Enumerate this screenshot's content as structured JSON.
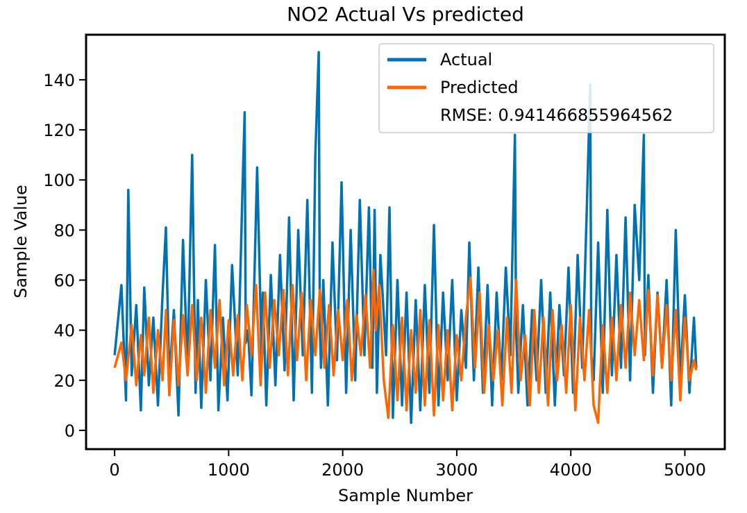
{
  "chart_data": {
    "type": "line",
    "title": "NO2 Actual Vs predicted",
    "xlabel": "Sample Number",
    "ylabel": "Sample Value",
    "xlim": [
      -250,
      5350
    ],
    "ylim": [
      -7.5,
      158
    ],
    "xticks": [
      0,
      1000,
      2000,
      3000,
      4000,
      5000
    ],
    "yticks": [
      0,
      20,
      40,
      60,
      80,
      100,
      120,
      140
    ],
    "xtick_labels": [
      "0",
      "1000",
      "2000",
      "3000",
      "4000",
      "5000"
    ],
    "ytick_labels": [
      "0",
      "20",
      "40",
      "60",
      "80",
      "100",
      "120",
      "140"
    ],
    "legend_position": "top-right",
    "annotation": "RMSE: 0.941466855964562",
    "grid": false,
    "series": [
      {
        "name": "Actual",
        "color": "#0072B2",
        "x": [
          0,
          60,
          100,
          120,
          150,
          190,
          230,
          260,
          300,
          340,
          380,
          420,
          450,
          480,
          520,
          560,
          600,
          640,
          680,
          710,
          730,
          760,
          800,
          840,
          880,
          910,
          950,
          990,
          1030,
          1080,
          1120,
          1140,
          1150,
          1170,
          1200,
          1250,
          1290,
          1300,
          1330,
          1370,
          1410,
          1450,
          1490,
          1530,
          1570,
          1610,
          1650,
          1690,
          1730,
          1760,
          1790,
          1800,
          1810,
          1830,
          1870,
          1910,
          1950,
          1990,
          2030,
          2070,
          2110,
          2150,
          2190,
          2230,
          2260,
          2280,
          2300,
          2330,
          2380,
          2410,
          2440,
          2480,
          2520,
          2560,
          2600,
          2640,
          2680,
          2720,
          2760,
          2800,
          2840,
          2880,
          2920,
          2960,
          3000,
          3040,
          3080,
          3110,
          3150,
          3190,
          3230,
          3270,
          3310,
          3350,
          3390,
          3430,
          3470,
          3510,
          3520,
          3540,
          3580,
          3620,
          3660,
          3700,
          3740,
          3780,
          3820,
          3860,
          3900,
          3940,
          3980,
          4020,
          4060,
          4100,
          4140,
          4170,
          4180,
          4200,
          4240,
          4280,
          4320,
          4360,
          4400,
          4440,
          4480,
          4520,
          4560,
          4600,
          4640,
          4650,
          4680,
          4720,
          4760,
          4800,
          4840,
          4880,
          4920,
          4960,
          5000,
          5040,
          5080,
          5100
        ],
        "y": [
          30,
          58,
          12,
          96,
          22,
          50,
          8,
          57,
          18,
          45,
          10,
          54,
          81,
          20,
          48,
          6,
          76,
          25,
          110,
          15,
          52,
          9,
          60,
          20,
          74,
          8,
          45,
          12,
          66,
          22,
          94,
          127,
          35,
          40,
          14,
          105,
          28,
          55,
          10,
          62,
          18,
          70,
          24,
          85,
          12,
          80,
          30,
          92,
          15,
          110,
          151,
          40,
          25,
          60,
          10,
          75,
          28,
          99,
          15,
          80,
          20,
          92,
          30,
          89,
          25,
          88,
          15,
          70,
          30,
          89,
          5,
          60,
          10,
          55,
          3,
          52,
          8,
          58,
          15,
          82,
          10,
          55,
          20,
          60,
          12,
          48,
          25,
          75,
          20,
          65,
          15,
          58,
          10,
          55,
          20,
          65,
          30,
          118,
          40,
          15,
          50,
          10,
          48,
          20,
          60,
          15,
          55,
          10,
          50,
          22,
          65,
          15,
          70,
          25,
          88,
          138,
          30,
          20,
          75,
          15,
          88,
          22,
          70,
          25,
          85,
          20,
          90,
          60,
          118,
          30,
          62,
          15,
          55,
          25,
          60,
          10,
          80,
          20,
          54,
          15,
          45,
          25
        ]
      },
      {
        "name": "Predicted",
        "color": "#FF6600",
        "x": [
          0,
          60,
          100,
          150,
          190,
          230,
          260,
          300,
          340,
          380,
          420,
          450,
          480,
          520,
          560,
          600,
          640,
          680,
          720,
          760,
          800,
          840,
          880,
          920,
          960,
          1000,
          1040,
          1080,
          1120,
          1160,
          1200,
          1240,
          1280,
          1320,
          1360,
          1400,
          1440,
          1480,
          1520,
          1560,
          1600,
          1640,
          1680,
          1720,
          1760,
          1800,
          1840,
          1880,
          1920,
          1960,
          2000,
          2040,
          2080,
          2120,
          2160,
          2200,
          2240,
          2270,
          2290,
          2320,
          2360,
          2400,
          2440,
          2480,
          2520,
          2560,
          2600,
          2640,
          2680,
          2720,
          2760,
          2800,
          2840,
          2880,
          2920,
          2960,
          3000,
          3040,
          3080,
          3120,
          3160,
          3200,
          3240,
          3280,
          3320,
          3360,
          3400,
          3440,
          3480,
          3520,
          3560,
          3600,
          3640,
          3680,
          3720,
          3760,
          3800,
          3840,
          3880,
          3920,
          3960,
          4000,
          4040,
          4080,
          4120,
          4160,
          4200,
          4240,
          4280,
          4320,
          4360,
          4400,
          4440,
          4480,
          4520,
          4560,
          4600,
          4640,
          4680,
          4720,
          4760,
          4800,
          4840,
          4880,
          4920,
          4960,
          5000,
          5040,
          5080,
          5100
        ],
        "y": [
          25,
          35,
          20,
          42,
          18,
          38,
          22,
          45,
          15,
          40,
          20,
          48,
          14,
          44,
          18,
          46,
          22,
          50,
          20,
          45,
          15,
          48,
          25,
          52,
          18,
          44,
          22,
          46,
          20,
          50,
          30,
          58,
          18,
          55,
          25,
          52,
          30,
          56,
          22,
          58,
          28,
          55,
          20,
          52,
          30,
          56,
          25,
          50,
          22,
          48,
          28,
          52,
          20,
          46,
          30,
          54,
          25,
          64,
          40,
          58,
          20,
          5,
          42,
          12,
          45,
          8,
          40,
          15,
          48,
          10,
          44,
          6,
          42,
          12,
          40,
          8,
          38,
          20,
          45,
          61,
          25,
          55,
          15,
          42,
          20,
          40,
          10,
          45,
          15,
          60,
          20,
          38,
          10,
          48,
          15,
          45,
          10,
          48,
          20,
          42,
          15,
          50,
          8,
          45,
          20,
          48,
          10,
          3,
          42,
          15,
          45,
          20,
          50,
          25,
          55,
          30,
          52,
          28,
          56,
          22,
          54,
          25,
          50,
          20,
          48,
          12,
          45,
          20,
          28,
          24
        ]
      }
    ]
  }
}
